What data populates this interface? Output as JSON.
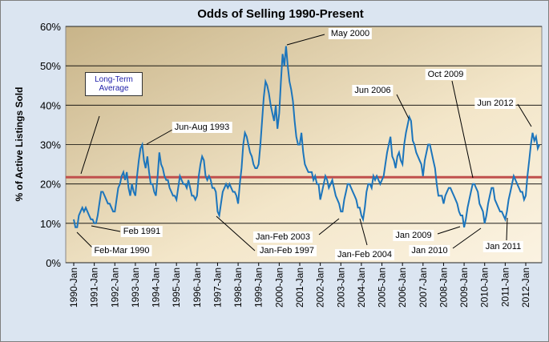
{
  "chart_data": {
    "type": "line",
    "title": "Odds of Selling 1990-Present",
    "y_label": "% of Active Listings Sold",
    "categories": [
      "1990-Jan",
      null,
      null,
      null,
      null,
      null,
      null,
      null,
      null,
      null,
      null,
      null,
      "1991-Jan",
      null,
      null,
      null,
      null,
      null,
      null,
      null,
      null,
      null,
      null,
      null,
      "1992-Jan",
      null,
      null,
      null,
      null,
      null,
      null,
      null,
      null,
      null,
      null,
      null,
      "1993-Jan",
      null,
      null,
      null,
      null,
      null,
      null,
      null,
      null,
      null,
      null,
      null,
      "1994-Jan",
      null,
      null,
      null,
      null,
      null,
      null,
      null,
      null,
      null,
      null,
      null,
      "1995-Jan",
      null,
      null,
      null,
      null,
      null,
      null,
      null,
      null,
      null,
      null,
      null,
      "1996-Jan",
      null,
      null,
      null,
      null,
      null,
      null,
      null,
      null,
      null,
      null,
      null,
      "1997-Jan",
      null,
      null,
      null,
      null,
      null,
      null,
      null,
      null,
      null,
      null,
      null,
      "1998-Jan",
      null,
      null,
      null,
      null,
      null,
      null,
      null,
      null,
      null,
      null,
      null,
      "1999-Jan",
      null,
      null,
      null,
      null,
      null,
      null,
      null,
      null,
      null,
      null,
      null,
      "2000-Jan",
      null,
      null,
      null,
      null,
      null,
      null,
      null,
      null,
      null,
      null,
      null,
      "2001-Jan",
      null,
      null,
      null,
      null,
      null,
      null,
      null,
      null,
      null,
      null,
      null,
      "2002-Jan",
      null,
      null,
      null,
      null,
      null,
      null,
      null,
      null,
      null,
      null,
      null,
      "2003-Jan",
      null,
      null,
      null,
      null,
      null,
      null,
      null,
      null,
      null,
      null,
      null,
      "2004-Jan",
      null,
      null,
      null,
      null,
      null,
      null,
      null,
      null,
      null,
      null,
      null,
      "2005-Jan",
      null,
      null,
      null,
      null,
      null,
      null,
      null,
      null,
      null,
      null,
      null,
      "2006-Jan",
      null,
      null,
      null,
      null,
      null,
      null,
      null,
      null,
      null,
      null,
      null,
      "2007-Jan",
      null,
      null,
      null,
      null,
      null,
      null,
      null,
      null,
      null,
      null,
      null,
      "2008-Jan",
      null,
      null,
      null,
      null,
      null,
      null,
      null,
      null,
      null,
      null,
      null,
      "2009-Jan",
      null,
      null,
      null,
      null,
      null,
      null,
      null,
      null,
      null,
      null,
      null,
      "2010-Jan",
      null,
      null,
      null,
      null,
      null,
      null,
      null,
      null,
      null,
      null,
      null,
      "2011-Jan",
      null,
      null,
      null,
      null,
      null,
      null,
      null,
      null,
      null,
      null,
      null,
      "2012-Jan",
      null,
      null,
      null,
      null,
      null,
      null,
      null,
      null
    ],
    "series": [
      {
        "name": "Odds of Selling",
        "color": "#1c75bc",
        "values": [
          11,
          9,
          9,
          12,
          13,
          14,
          13,
          14,
          13,
          12,
          11,
          11,
          10,
          10,
          12,
          15,
          18,
          18,
          17,
          16,
          15,
          15,
          14,
          13,
          13,
          16,
          19,
          20,
          22,
          23,
          21,
          23,
          19,
          17,
          20,
          18,
          17,
          22,
          26,
          29,
          30,
          26,
          24,
          27,
          23,
          20,
          20,
          18,
          17,
          22,
          28,
          25,
          24,
          22,
          21,
          21,
          19,
          18,
          17,
          17,
          16,
          19,
          22,
          21,
          20,
          20,
          19,
          21,
          19,
          17,
          17,
          16,
          17,
          22,
          25,
          27,
          26,
          22,
          21,
          22,
          21,
          19,
          19,
          18,
          13,
          12,
          15,
          18,
          19,
          20,
          19,
          20,
          19,
          18,
          18,
          17,
          15,
          20,
          24,
          30,
          33,
          32,
          30,
          28,
          27,
          25,
          24,
          24,
          25,
          30,
          36,
          42,
          46,
          45,
          43,
          40,
          38,
          36,
          40,
          34,
          38,
          46,
          53,
          50,
          55,
          50,
          46,
          44,
          41,
          36,
          32,
          30,
          30,
          33,
          28,
          25,
          24,
          23,
          23,
          23,
          21,
          22,
          20,
          20,
          16,
          18,
          20,
          22,
          21,
          19,
          20,
          21,
          19,
          17,
          16,
          15,
          13,
          13,
          16,
          18,
          20,
          20,
          19,
          18,
          17,
          16,
          14,
          14,
          12,
          11,
          14,
          18,
          20,
          20,
          19,
          22,
          21,
          22,
          21,
          20,
          21,
          22,
          25,
          28,
          30,
          32,
          27,
          26,
          24,
          27,
          28,
          26,
          25,
          30,
          33,
          35,
          37,
          36,
          31,
          30,
          28,
          27,
          26,
          25,
          22,
          26,
          28,
          30,
          30,
          28,
          26,
          24,
          20,
          17,
          17,
          17,
          15,
          17,
          18,
          19,
          19,
          18,
          17,
          16,
          15,
          13,
          12,
          12,
          9,
          11,
          14,
          16,
          18,
          20,
          20,
          19,
          18,
          15,
          14,
          13,
          10,
          12,
          15,
          17,
          19,
          19,
          16,
          15,
          14,
          13,
          13,
          12,
          11,
          13,
          16,
          18,
          20,
          22,
          21,
          20,
          19,
          18,
          18,
          16,
          17,
          22,
          26,
          30,
          33,
          31,
          32,
          29,
          30
        ]
      }
    ],
    "average": {
      "label": "Long-Term Average",
      "value": 21.7,
      "color": "#c0504d"
    },
    "ylim": [
      0,
      60
    ],
    "yticks": [
      {
        "value": 0,
        "label": "0%"
      },
      {
        "value": 10,
        "label": "10%"
      },
      {
        "value": 20,
        "label": "20%"
      },
      {
        "value": 30,
        "label": "30%"
      },
      {
        "value": 40,
        "label": "40%"
      },
      {
        "value": 50,
        "label": "50%"
      },
      {
        "value": 60,
        "label": "60%"
      }
    ],
    "grid": true,
    "annotations": [
      "Jun-Aug 1993",
      "May 2000",
      "Jun 2006",
      "Oct 2009",
      "Jun 2012",
      "Feb 1991",
      "Feb-Mar 1990",
      "Jan-Feb 2003",
      "Jan-Feb 1997",
      "Jan-Feb 2004",
      "Jan 2009",
      "Jan 2010",
      "Jan 2011"
    ]
  }
}
